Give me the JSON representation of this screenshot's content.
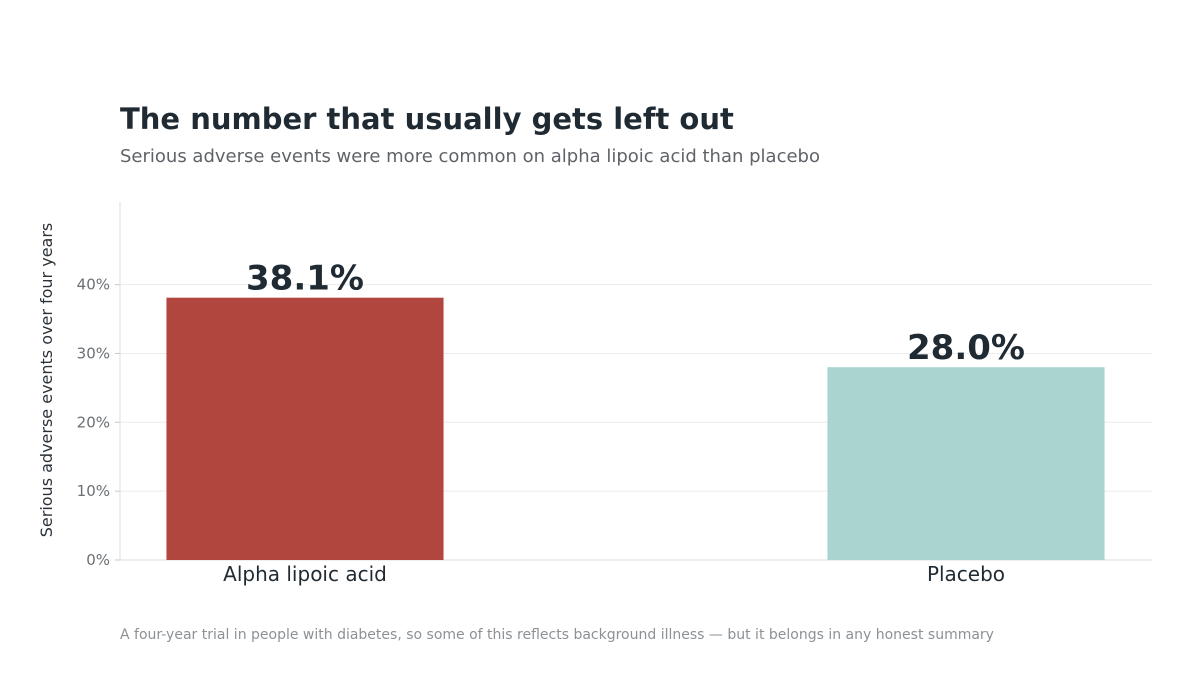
{
  "header": {
    "title": "The number that usually gets left out",
    "subtitle": "Serious adverse events were more common on alpha lipoic acid than placebo"
  },
  "footer": {
    "note": "A four-year trial in people with diabetes, so some of this reflects background illness — but it belongs in any honest summary"
  },
  "chart_data": {
    "type": "bar",
    "title": "The number that usually gets left out",
    "subtitle": "Serious adverse events were more common on alpha lipoic acid than placebo",
    "xlabel": "",
    "ylabel": "Serious adverse events over four years",
    "categories": [
      "Alpha lipoic acid",
      "Placebo"
    ],
    "values": [
      38.1,
      28.0
    ],
    "value_labels": [
      "38.1%",
      "28.0%"
    ],
    "bar_colors": [
      "#b0463d",
      "#a9d4d0"
    ],
    "ylim": [
      0,
      52
    ],
    "yticks": [
      0,
      10,
      20,
      30,
      40
    ],
    "ytick_labels": [
      "0%",
      "10%",
      "20%",
      "30%",
      "40%"
    ],
    "grid": true,
    "legend": "none"
  }
}
